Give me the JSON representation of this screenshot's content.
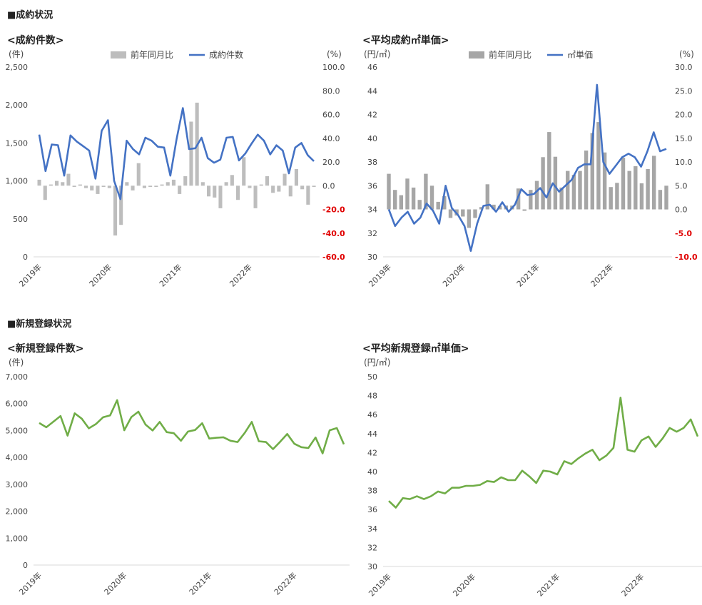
{
  "sections": {
    "contracts": "■成約状況",
    "registrations": "■新規登録状況"
  },
  "colors": {
    "bar_light": "#bdbdbd",
    "bar_dark": "#a6a6a6",
    "line_blue": "#4472c4",
    "line_green": "#70ad47",
    "negative_label": "#e00000",
    "axis_text": "#444444"
  },
  "chart_data": [
    {
      "type": "bar+line",
      "title": "<成約件数>",
      "y_left_unit": "(件)",
      "y_right_unit": "(%)",
      "legend": [
        "前年同月比",
        "成約件数"
      ],
      "legend_placement": "top",
      "y_left_ticks": [
        "2,500",
        "2,000",
        "1,500",
        "1,000",
        "500",
        "0"
      ],
      "y_left_range": [
        0,
        2500
      ],
      "y_right_ticks": [
        "100.0",
        "80.0",
        "60.0",
        "40.0",
        "20.0",
        "0.0",
        "-20.0",
        "-40.0",
        "-60.0"
      ],
      "y_right_range": [
        -60,
        100
      ],
      "x_labels": [
        "2019年",
        "2020年",
        "2021年",
        "2022年"
      ],
      "x_label_index": [
        0,
        12,
        24,
        36
      ],
      "series": [
        {
          "name": "前年同月比",
          "kind": "bar",
          "axis": "right",
          "values": [
            5,
            -12,
            1,
            4,
            3,
            10,
            -1,
            1,
            -2,
            -4,
            -7,
            -1,
            -2,
            -42,
            -33,
            3,
            -4,
            19,
            -2,
            -1,
            -1,
            1,
            3,
            5,
            -7,
            8,
            54,
            70,
            3,
            -9,
            -10,
            -19,
            3,
            9,
            -12,
            24,
            -2,
            -19,
            1,
            8,
            -6,
            -5,
            10,
            -9,
            14,
            -3,
            -16,
            -1
          ],
          "color": "#bdbdbd"
        },
        {
          "name": "成約件数",
          "kind": "line",
          "axis": "left",
          "values": [
            1610,
            1130,
            1480,
            1470,
            1070,
            1600,
            1520,
            1460,
            1400,
            1030,
            1660,
            1800,
            1000,
            760,
            1530,
            1420,
            1350,
            1570,
            1530,
            1450,
            1440,
            1070,
            1550,
            1960,
            1420,
            1430,
            1570,
            1300,
            1240,
            1280,
            1570,
            1580,
            1270,
            1360,
            1490,
            1610,
            1530,
            1350,
            1470,
            1400,
            1100,
            1440,
            1500,
            1340,
            1260
          ],
          "color": "#4472c4"
        }
      ]
    },
    {
      "type": "bar+line",
      "title": "<平均成約㎡単価>",
      "y_left_unit": "(円/㎡)",
      "y_right_unit": "(%)",
      "legend": [
        "前年同月比",
        "㎡単価"
      ],
      "legend_placement": "top",
      "y_left_ticks": [
        "46",
        "44",
        "42",
        "40",
        "38",
        "36",
        "34",
        "32",
        "30"
      ],
      "y_left_range": [
        30,
        46
      ],
      "y_right_ticks": [
        "30.0",
        "25.0",
        "20.0",
        "15.0",
        "10.0",
        "5.0",
        "0.0",
        "-5.0",
        "-10.0"
      ],
      "y_right_range": [
        -10,
        30
      ],
      "x_labels": [
        "2019年",
        "2020年",
        "2021年",
        "2022年"
      ],
      "x_label_index": [
        0,
        12,
        24,
        36
      ],
      "series": [
        {
          "name": "前年同月比",
          "kind": "bar",
          "axis": "right",
          "values": [
            7.5,
            4.1,
            3.0,
            6.5,
            4.6,
            2.0,
            7.5,
            5.0,
            1.6,
            2.8,
            -1.8,
            -1.3,
            -1.5,
            -3.9,
            -1.8,
            0.5,
            5.3,
            1.0,
            0.7,
            0.8,
            0.8,
            4.4,
            -0.3,
            4.1,
            6.0,
            11.0,
            16.3,
            11.1,
            4.6,
            8.1,
            7.3,
            8.1,
            12.4,
            16.1,
            18.4,
            12.0,
            4.7,
            5.6,
            10.9,
            8.1,
            9.1,
            5.5,
            8.5,
            11.3,
            4.1,
            5.0
          ],
          "color": "#a6a6a6"
        },
        {
          "name": "㎡単価",
          "kind": "line",
          "axis": "left",
          "values": [
            34.0,
            32.6,
            33.3,
            33.8,
            32.8,
            33.3,
            34.5,
            33.9,
            32.8,
            36.0,
            34.1,
            33.5,
            32.6,
            30.5,
            32.8,
            34.3,
            34.4,
            33.8,
            34.6,
            33.8,
            34.4,
            35.7,
            35.2,
            35.3,
            35.8,
            35.0,
            36.2,
            35.5,
            36.0,
            36.5,
            37.5,
            37.8,
            37.8,
            44.5,
            38.0,
            37.0,
            37.7,
            38.4,
            38.7,
            38.4,
            37.6,
            38.9,
            40.5,
            38.9,
            39.1
          ],
          "color": "#4472c4"
        }
      ]
    },
    {
      "type": "line",
      "title": "<新規登録件数>",
      "y_left_unit": "(件)",
      "y_left_ticks": [
        "7,000",
        "6,000",
        "5,000",
        "4,000",
        "3,000",
        "2,000",
        "1,000",
        "0"
      ],
      "y_left_range": [
        0,
        7000
      ],
      "x_labels": [
        "2019年",
        "2020年",
        "2021年",
        "2022年"
      ],
      "x_label_index": [
        0,
        12,
        24,
        36
      ],
      "series": [
        {
          "name": "",
          "kind": "line",
          "axis": "left",
          "values": [
            5280,
            5120,
            5330,
            5540,
            4810,
            5640,
            5440,
            5080,
            5240,
            5490,
            5560,
            6130,
            5010,
            5500,
            5700,
            5220,
            5000,
            5320,
            4940,
            4900,
            4620,
            4960,
            5020,
            5270,
            4700,
            4730,
            4750,
            4620,
            4570,
            4910,
            5320,
            4600,
            4570,
            4310,
            4580,
            4870,
            4510,
            4380,
            4350,
            4740,
            4150,
            5010,
            5090,
            4490
          ],
          "color": "#70ad47"
        }
      ]
    },
    {
      "type": "line",
      "title": "<平均新規登録㎡単価>",
      "y_left_unit": "(円/㎡)",
      "y_left_ticks": [
        "50",
        "48",
        "46",
        "44",
        "42",
        "40",
        "38",
        "36",
        "34",
        "32",
        "30"
      ],
      "y_left_range": [
        30,
        50
      ],
      "x_labels": [
        "2019年",
        "2020年",
        "2021年",
        "2022年"
      ],
      "x_label_index": [
        0,
        12,
        24,
        36
      ],
      "series": [
        {
          "name": "",
          "kind": "line",
          "axis": "left",
          "values": [
            36.9,
            36.2,
            37.2,
            37.1,
            37.4,
            37.1,
            37.4,
            37.9,
            37.7,
            38.3,
            38.3,
            38.5,
            38.5,
            38.6,
            39.0,
            38.9,
            39.4,
            39.1,
            39.1,
            40.1,
            39.5,
            38.8,
            40.1,
            40.0,
            39.7,
            41.1,
            40.8,
            41.4,
            41.9,
            42.3,
            41.2,
            41.7,
            42.5,
            47.8,
            42.3,
            42.1,
            43.3,
            43.7,
            42.6,
            43.5,
            44.6,
            44.2,
            44.6,
            45.5,
            43.7
          ],
          "color": "#70ad47"
        }
      ]
    }
  ]
}
